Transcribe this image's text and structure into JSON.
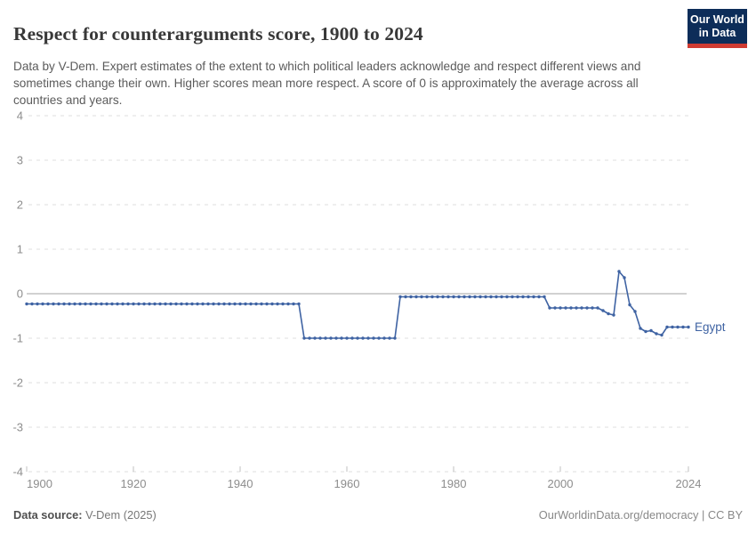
{
  "header": {
    "title": "Respect for counterarguments score, 1900 to 2024",
    "logo": {
      "line1": "Our World",
      "line2": "in Data"
    }
  },
  "subtitle": "Data by V-Dem. Expert estimates of the extent to which political leaders acknowledge and respect different views and sometimes change their own. Higher scores mean more respect. A score of 0 is approximately the average across all countries and years.",
  "footer": {
    "source_label": "Data source:",
    "source_value": " V-Dem (2025)",
    "right": "OurWorldinData.org/democracy | CC BY"
  },
  "colors": {
    "series_blue": "#3f63a3",
    "grid_dashed": "#dfdfdf",
    "zero_line": "#a3a3a3",
    "axis_text": "#8d8d8d",
    "logo_navy": "#0d2d59",
    "logo_red": "#cf3b32"
  },
  "chart_data": {
    "type": "line",
    "title": "Respect for counterarguments score, 1900 to 2024",
    "xlabel": "",
    "ylabel": "",
    "xlim": [
      1900,
      2024
    ],
    "ylim": [
      -4,
      4
    ],
    "x_ticks": [
      1900,
      1920,
      1940,
      1960,
      1980,
      2000,
      2024
    ],
    "y_ticks": [
      4,
      3,
      2,
      1,
      0,
      -1,
      -2,
      -3,
      -4
    ],
    "grid": "horizontal dashed lines; solid line at 0; dashed bottom axis at -4",
    "legend_position": "label at end of line",
    "series": [
      {
        "name": "Egypt",
        "color": "#3f63a3",
        "marker": "dot",
        "segments": [
          {
            "from": 1900,
            "to": 1951,
            "value": -0.23
          },
          {
            "from": 1952,
            "to": 1969,
            "value": -1.0
          },
          {
            "from": 1970,
            "to": 1997,
            "value": -0.07
          },
          {
            "from": 1998,
            "to": 2007,
            "value": -0.32
          },
          {
            "from": 2008,
            "to": 2008,
            "value": -0.38
          },
          {
            "from": 2009,
            "to": 2009,
            "value": -0.45
          },
          {
            "from": 2010,
            "to": 2010,
            "value": -0.48
          },
          {
            "from": 2011,
            "to": 2011,
            "value": 0.5
          },
          {
            "from": 2012,
            "to": 2012,
            "value": 0.36
          },
          {
            "from": 2013,
            "to": 2013,
            "value": -0.25
          },
          {
            "from": 2014,
            "to": 2014,
            "value": -0.4
          },
          {
            "from": 2015,
            "to": 2015,
            "value": -0.78
          },
          {
            "from": 2016,
            "to": 2016,
            "value": -0.85
          },
          {
            "from": 2017,
            "to": 2017,
            "value": -0.83
          },
          {
            "from": 2018,
            "to": 2018,
            "value": -0.9
          },
          {
            "from": 2019,
            "to": 2019,
            "value": -0.93
          },
          {
            "from": 2020,
            "to": 2024,
            "value": -0.75
          }
        ]
      }
    ]
  }
}
